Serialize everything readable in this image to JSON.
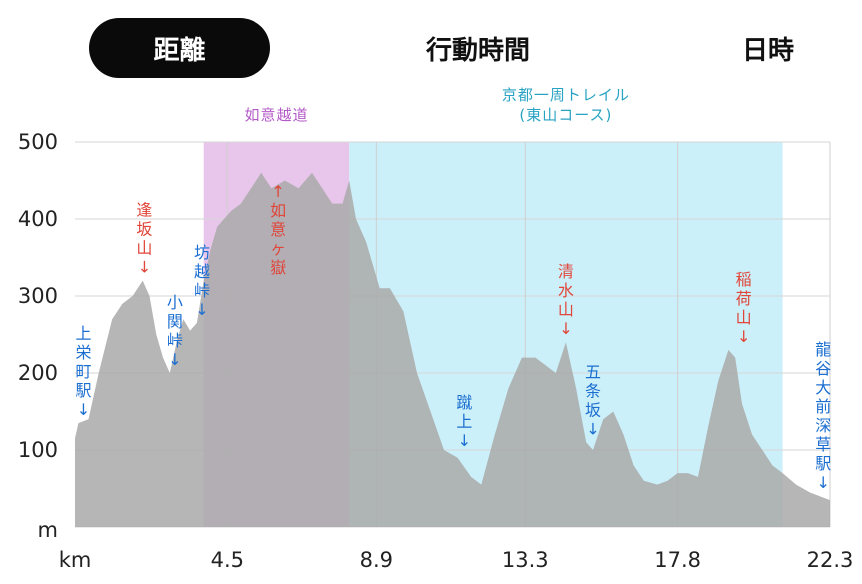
{
  "tabs": [
    {
      "label": "距離",
      "active": true
    },
    {
      "label": "行動時間",
      "active": false
    },
    {
      "label": "日時",
      "active": false
    }
  ],
  "chart_data": {
    "type": "area",
    "x_unit": "km",
    "y_unit": "m",
    "xlim": [
      0,
      22.3
    ],
    "ylim": [
      0,
      500
    ],
    "xticks": [
      4.5,
      8.9,
      13.3,
      17.8,
      22.3
    ],
    "xtick_labels": [
      "4.5",
      "8.9",
      "13.3",
      "17.8",
      "22.3"
    ],
    "yticks": [
      100,
      200,
      300,
      400,
      500
    ],
    "grid": true,
    "colors": {
      "elevation_fill": "#a9a9a9",
      "zone_pink": "#e6c0ea",
      "zone_cyan": "#c6eef8",
      "label_red": "#e0463a",
      "label_blue": "#1c6fd1",
      "zone_label_purple": "#b45ac8",
      "zone_label_cyan": "#29a3c3"
    },
    "zones": [
      {
        "label_lines": [
          "如意越道"
        ],
        "x_start": 3.8,
        "x_end": 8.1,
        "color": "#e6c0ea",
        "text_color": "#b45ac8"
      },
      {
        "label_lines": [
          "京都一周トレイル",
          "(東山コース)"
        ],
        "x_start": 8.1,
        "x_end": 20.9,
        "color": "#c6eef8",
        "text_color": "#29a3c3"
      }
    ],
    "elevation_profile": {
      "x": [
        0,
        0.1,
        0.4,
        0.7,
        1.1,
        1.4,
        1.7,
        2.0,
        2.2,
        2.4,
        2.6,
        2.8,
        3.0,
        3.2,
        3.4,
        3.6,
        3.8,
        4.0,
        4.2,
        4.4,
        4.6,
        4.9,
        5.2,
        5.5,
        5.8,
        6.2,
        6.6,
        7.0,
        7.3,
        7.6,
        7.9,
        8.1,
        8.3,
        8.6,
        9.0,
        9.3,
        9.7,
        10.1,
        10.5,
        10.9,
        11.3,
        11.7,
        12.0,
        12.4,
        12.8,
        13.2,
        13.6,
        13.9,
        14.2,
        14.5,
        14.8,
        15.1,
        15.3,
        15.6,
        15.9,
        16.2,
        16.5,
        16.8,
        17.2,
        17.5,
        17.8,
        18.1,
        18.4,
        18.7,
        19.0,
        19.3,
        19.5,
        19.7,
        20.0,
        20.3,
        20.6,
        20.9,
        21.3,
        21.7,
        22.0,
        22.3
      ],
      "y": [
        115,
        135,
        140,
        200,
        270,
        290,
        300,
        320,
        300,
        250,
        220,
        200,
        240,
        270,
        255,
        265,
        320,
        360,
        390,
        400,
        410,
        420,
        440,
        460,
        440,
        450,
        440,
        460,
        440,
        420,
        420,
        450,
        400,
        370,
        310,
        310,
        280,
        200,
        150,
        100,
        90,
        65,
        55,
        120,
        180,
        220,
        220,
        210,
        200,
        240,
        180,
        110,
        100,
        140,
        150,
        120,
        80,
        60,
        55,
        60,
        70,
        70,
        65,
        130,
        190,
        230,
        220,
        160,
        120,
        100,
        80,
        70,
        55,
        45,
        40,
        35
      ]
    },
    "peaks": [
      {
        "label": "上栄町駅",
        "x": 0.25,
        "y": 135,
        "color": "#1c6fd1"
      },
      {
        "label": "逢坂山",
        "x": 2.05,
        "y": 320,
        "color": "#e0463a"
      },
      {
        "label": "小関峠",
        "x": 2.95,
        "y": 200,
        "color": "#1c6fd1"
      },
      {
        "label": "坊越峠",
        "x": 3.75,
        "y": 265,
        "color": "#1c6fd1"
      },
      {
        "label": "如意ヶ嶽",
        "x": 6.0,
        "y": 460,
        "color": "#e0463a",
        "arrow": "up"
      },
      {
        "label": "蹴上",
        "x": 11.5,
        "y": 95,
        "color": "#1c6fd1"
      },
      {
        "label": "清水山",
        "x": 14.5,
        "y": 240,
        "color": "#e0463a"
      },
      {
        "label": "五条坂",
        "x": 15.3,
        "y": 110,
        "color": "#1c6fd1"
      },
      {
        "label": "稲荷山",
        "x": 19.75,
        "y": 230,
        "color": "#e0463a"
      },
      {
        "label": "龍谷大前深草駅",
        "x": 22.1,
        "y": 40,
        "color": "#1c6fd1"
      }
    ]
  }
}
